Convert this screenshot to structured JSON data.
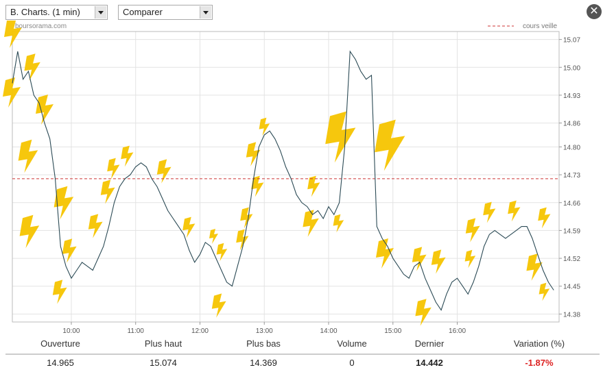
{
  "controls": {
    "chart_select": "B. Charts. (1 min)",
    "compare_select": "Comparer"
  },
  "colors": {
    "price": "#2b4a55",
    "reference": "#cc3333",
    "grid": "#e3e3e3",
    "decoration": "#f5c400",
    "negative": "#dd2222"
  },
  "chart_data": {
    "type": "line",
    "watermark": "boursorama.com",
    "legend": {
      "label": "cours veille",
      "position": "top-right",
      "style": "dashed"
    },
    "reference_value": 14.72,
    "ylim": [
      14.36,
      15.09
    ],
    "yticks": [
      "15.07",
      "15.00",
      "14.93",
      "14.86",
      "14.80",
      "14.73",
      "14.66",
      "14.59",
      "14.52",
      "14.45",
      "14.38"
    ],
    "xlim": [
      "09:05",
      "17:35"
    ],
    "xticks": [
      "10:00",
      "11:00",
      "12:00",
      "13:00",
      "14:00",
      "15:00",
      "16:00"
    ],
    "grid": true,
    "series": [
      {
        "x": [
          "09:05",
          "09:10",
          "09:15",
          "09:20",
          "09:25",
          "09:30",
          "09:35",
          "09:40",
          "09:45",
          "09:50",
          "09:55",
          "10:00",
          "10:05",
          "10:10",
          "10:15",
          "10:20",
          "10:25",
          "10:30",
          "10:35",
          "10:40",
          "10:45",
          "10:50",
          "10:55",
          "11:00",
          "11:05",
          "11:10",
          "11:15",
          "11:20",
          "11:25",
          "11:30",
          "11:35",
          "11:40",
          "11:45",
          "11:50",
          "11:55",
          "12:00",
          "12:05",
          "12:10",
          "12:15",
          "12:20",
          "12:25",
          "12:30",
          "12:35",
          "12:40",
          "12:45",
          "12:50",
          "12:55",
          "13:00",
          "13:05",
          "13:10",
          "13:15",
          "13:20",
          "13:25",
          "13:30",
          "13:35",
          "13:40",
          "13:45",
          "13:50",
          "13:55",
          "14:00",
          "14:05",
          "14:10",
          "14:15",
          "14:20",
          "14:25",
          "14:30",
          "14:35",
          "14:40",
          "14:45",
          "14:50",
          "14:55",
          "15:00",
          "15:05",
          "15:10",
          "15:15",
          "15:20",
          "15:25",
          "15:30",
          "15:35",
          "15:40",
          "15:45",
          "15:50",
          "15:55",
          "16:00",
          "16:05",
          "16:10",
          "16:15",
          "16:20",
          "16:25",
          "16:30",
          "16:35",
          "16:40",
          "16:45",
          "16:50",
          "16:55",
          "17:00",
          "17:05",
          "17:10",
          "17:15",
          "17:20",
          "17:25",
          "17:30"
        ],
        "values": [
          14.96,
          15.04,
          14.97,
          14.99,
          14.93,
          14.91,
          14.86,
          14.82,
          14.72,
          14.55,
          14.5,
          14.47,
          14.49,
          14.51,
          14.5,
          14.49,
          14.52,
          14.55,
          14.6,
          14.66,
          14.7,
          14.72,
          14.73,
          14.75,
          14.76,
          14.75,
          14.72,
          14.7,
          14.67,
          14.64,
          14.62,
          14.6,
          14.58,
          14.54,
          14.51,
          14.53,
          14.56,
          14.55,
          14.52,
          14.49,
          14.46,
          14.45,
          14.5,
          14.55,
          14.62,
          14.72,
          14.8,
          14.83,
          14.84,
          14.82,
          14.79,
          14.75,
          14.72,
          14.68,
          14.66,
          14.65,
          14.63,
          14.64,
          14.62,
          14.65,
          14.63,
          14.66,
          14.8,
          15.04,
          15.02,
          14.99,
          14.97,
          14.98,
          14.6,
          14.57,
          14.55,
          14.52,
          14.5,
          14.48,
          14.47,
          14.5,
          14.51,
          14.47,
          14.44,
          14.41,
          14.39,
          14.43,
          14.46,
          14.47,
          14.45,
          14.43,
          14.46,
          14.5,
          14.55,
          14.58,
          14.59,
          14.58,
          14.57,
          14.58,
          14.59,
          14.6,
          14.6,
          14.57,
          14.53,
          14.49,
          14.46,
          14.44
        ]
      }
    ]
  },
  "stats": {
    "labels": [
      "Ouverture",
      "Plus haut",
      "Plus bas",
      "Volume",
      "Dernier",
      "Variation (%)"
    ],
    "values": [
      "14.965",
      "15.074",
      "14.369",
      "0",
      "14.442",
      "-1.87%"
    ]
  }
}
